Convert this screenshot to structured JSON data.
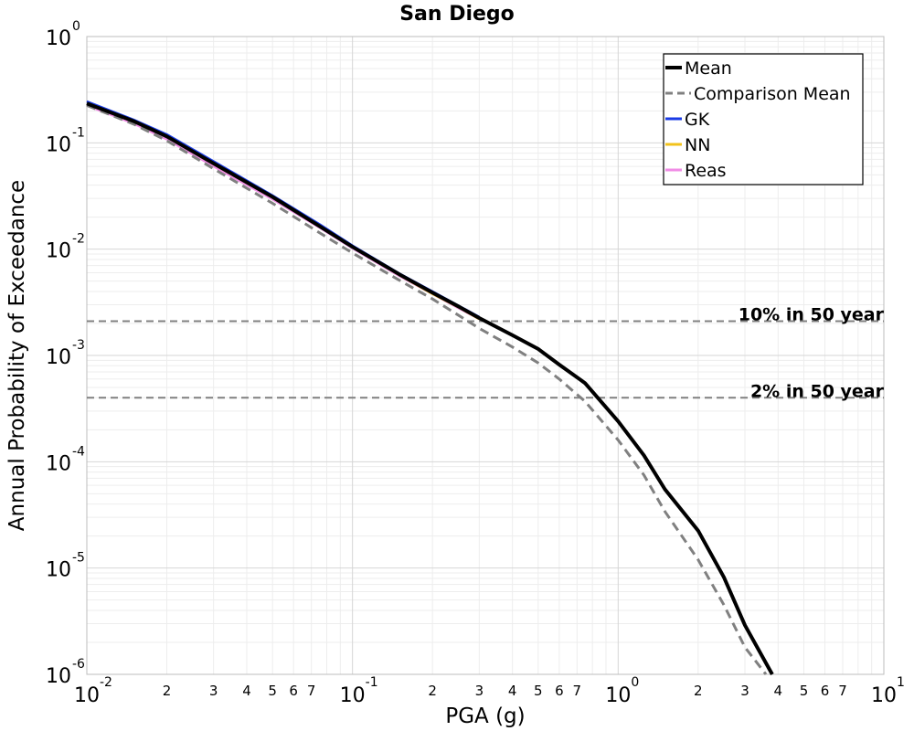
{
  "chart_data": {
    "type": "line",
    "title": "San Diego",
    "xlabel": "PGA (g)",
    "ylabel": "Annual Probability of Exceedance",
    "x_scale": "log",
    "y_scale": "log",
    "xlim": [
      0.01,
      10
    ],
    "ylim": [
      1e-06,
      1
    ],
    "grid": true,
    "legend_position": "top-right",
    "x_major_ticks": [
      {
        "value": 0.01,
        "base": "10",
        "exp": "-2"
      },
      {
        "value": 0.1,
        "base": "10",
        "exp": "-1"
      },
      {
        "value": 1,
        "base": "10",
        "exp": "0"
      },
      {
        "value": 10,
        "base": "10",
        "exp": "1"
      }
    ],
    "y_major_ticks": [
      {
        "value": 1,
        "base": "10",
        "exp": "0"
      },
      {
        "value": 0.1,
        "base": "10",
        "exp": "-1"
      },
      {
        "value": 0.01,
        "base": "10",
        "exp": "-2"
      },
      {
        "value": 0.001,
        "base": "10",
        "exp": "-3"
      },
      {
        "value": 0.0001,
        "base": "10",
        "exp": "-4"
      },
      {
        "value": 1e-05,
        "base": "10",
        "exp": "-5"
      },
      {
        "value": 1e-06,
        "base": "10",
        "exp": "-6"
      }
    ],
    "x_minor_tick_labels": [
      {
        "value": 0.02,
        "label": "2"
      },
      {
        "value": 0.03,
        "label": "3"
      },
      {
        "value": 0.04,
        "label": "4"
      },
      {
        "value": 0.05,
        "label": "5"
      },
      {
        "value": 0.06,
        "label": "6"
      },
      {
        "value": 0.07,
        "label": "7"
      },
      {
        "value": 0.2,
        "label": "2"
      },
      {
        "value": 0.3,
        "label": "3"
      },
      {
        "value": 0.4,
        "label": "4"
      },
      {
        "value": 0.5,
        "label": "5"
      },
      {
        "value": 0.6,
        "label": "6"
      },
      {
        "value": 0.7,
        "label": "7"
      },
      {
        "value": 2,
        "label": "2"
      },
      {
        "value": 3,
        "label": "3"
      },
      {
        "value": 4,
        "label": "4"
      },
      {
        "value": 5,
        "label": "5"
      },
      {
        "value": 6,
        "label": "6"
      },
      {
        "value": 7,
        "label": "7"
      }
    ],
    "reference_lines": [
      {
        "label": "10% in 50 year",
        "y": 0.0021,
        "color": "#808080"
      },
      {
        "label": "2% in 50 year",
        "y": 0.0004,
        "color": "#808080"
      }
    ],
    "series": [
      {
        "name": "Mean",
        "color": "#000000",
        "style": "solid",
        "x": [
          0.01,
          0.015,
          0.02,
          0.03,
          0.05,
          0.075,
          0.1,
          0.15,
          0.2,
          0.25,
          0.3,
          0.4,
          0.5,
          0.6,
          0.75,
          1.0,
          1.25,
          1.5,
          2.0,
          2.5,
          3.0,
          3.8
        ],
        "y": [
          0.235,
          0.16,
          0.115,
          0.064,
          0.031,
          0.0165,
          0.0105,
          0.0058,
          0.0039,
          0.0029,
          0.00225,
          0.00155,
          0.00115,
          0.00082,
          0.00055,
          0.00024,
          0.000115,
          5.5e-05,
          2.25e-05,
          8.2e-06,
          2.9e-06,
          1e-06
        ]
      },
      {
        "name": "Comparison Mean",
        "color": "#808080",
        "style": "dashed",
        "x": [
          0.01,
          0.015,
          0.02,
          0.03,
          0.05,
          0.075,
          0.1,
          0.15,
          0.2,
          0.25,
          0.3,
          0.4,
          0.5,
          0.6,
          0.75,
          1.0,
          1.25,
          1.5,
          2.0,
          2.5,
          3.0,
          3.6
        ],
        "y": [
          0.225,
          0.15,
          0.105,
          0.057,
          0.027,
          0.0143,
          0.0092,
          0.0051,
          0.0034,
          0.0024,
          0.0018,
          0.0012,
          0.00085,
          0.0006,
          0.00037,
          0.00016,
          7.5e-05,
          3.4e-05,
          1.2e-05,
          4.5e-06,
          1.8e-06,
          1e-06
        ]
      },
      {
        "name": "GK",
        "color": "#1a3be6",
        "style": "solid",
        "x": [
          0.01,
          0.015,
          0.02,
          0.03,
          0.05,
          0.075,
          0.1,
          0.15,
          0.2,
          0.25,
          0.3
        ],
        "y": [
          0.245,
          0.165,
          0.12,
          0.067,
          0.032,
          0.0172,
          0.0108,
          0.0059,
          0.004,
          0.00295,
          0.0023
        ]
      },
      {
        "name": "NN",
        "color": "#f2c21b",
        "style": "solid",
        "x": [
          0.01,
          0.015,
          0.02,
          0.03,
          0.05,
          0.075,
          0.1,
          0.15,
          0.2,
          0.25,
          0.3
        ],
        "y": [
          0.232,
          0.158,
          0.114,
          0.063,
          0.0305,
          0.0163,
          0.0104,
          0.0057,
          0.0038,
          0.00285,
          0.0022
        ]
      },
      {
        "name": "Reas",
        "color": "#f08ce6",
        "style": "solid",
        "x": [
          0.01,
          0.015,
          0.02,
          0.03,
          0.05,
          0.075,
          0.1,
          0.15,
          0.2,
          0.25,
          0.3
        ],
        "y": [
          0.225,
          0.152,
          0.108,
          0.06,
          0.0295,
          0.016,
          0.0102,
          0.0056,
          0.0038,
          0.0028,
          0.0022
        ]
      }
    ]
  }
}
